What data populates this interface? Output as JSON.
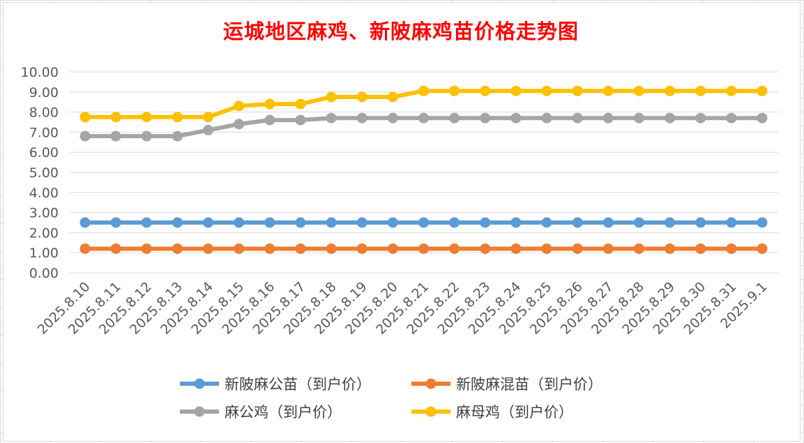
{
  "chart_data": {
    "type": "line",
    "title": "运城地区麻鸡、新陂麻鸡苗价格走势图",
    "xlabel": "",
    "ylabel": "",
    "ylim": [
      0,
      10
    ],
    "yticks": [
      "0.00",
      "1.00",
      "2.00",
      "3.00",
      "4.00",
      "5.00",
      "6.00",
      "7.00",
      "8.00",
      "9.00",
      "10.00"
    ],
    "grid": "horizontal",
    "legend_position": "bottom",
    "categories": [
      "2025.8.10",
      "2025.8.11",
      "2025.8.12",
      "2025.8.13",
      "2025.8.14",
      "2025.8.15",
      "2025.8.16",
      "2025.8.17",
      "2025.8.18",
      "2025.8.19",
      "2025.8.20",
      "2025.8.21",
      "2025.8.22",
      "2025.8.23",
      "2025.8.24",
      "2025.8.25",
      "2025.8.26",
      "2025.8.27",
      "2025.8.28",
      "2025.8.29",
      "2025.8.30",
      "2025.8.31",
      "2025.9.1"
    ],
    "series": [
      {
        "name": "新陂麻公苗（到户价）",
        "color": "#5b9bd5",
        "values": [
          2.5,
          2.5,
          2.5,
          2.5,
          2.5,
          2.5,
          2.5,
          2.5,
          2.5,
          2.5,
          2.5,
          2.5,
          2.5,
          2.5,
          2.5,
          2.5,
          2.5,
          2.5,
          2.5,
          2.5,
          2.5,
          2.5,
          2.5
        ]
      },
      {
        "name": "新陂麻混苗（到户价）",
        "color": "#ed7d31",
        "values": [
          1.2,
          1.2,
          1.2,
          1.2,
          1.2,
          1.2,
          1.2,
          1.2,
          1.2,
          1.2,
          1.2,
          1.2,
          1.2,
          1.2,
          1.2,
          1.2,
          1.2,
          1.2,
          1.2,
          1.2,
          1.2,
          1.2,
          1.2
        ]
      },
      {
        "name": "麻公鸡（到户价）",
        "color": "#a5a5a5",
        "values": [
          6.8,
          6.8,
          6.8,
          6.8,
          7.1,
          7.4,
          7.6,
          7.6,
          7.7,
          7.7,
          7.7,
          7.7,
          7.7,
          7.7,
          7.7,
          7.7,
          7.7,
          7.7,
          7.7,
          7.7,
          7.7,
          7.7,
          7.7
        ]
      },
      {
        "name": "麻母鸡（到户价）",
        "color": "#ffc000",
        "values": [
          7.75,
          7.75,
          7.75,
          7.75,
          7.75,
          8.3,
          8.4,
          8.4,
          8.75,
          8.75,
          8.75,
          9.05,
          9.05,
          9.05,
          9.05,
          9.05,
          9.05,
          9.05,
          9.05,
          9.05,
          9.05,
          9.05,
          9.05
        ]
      }
    ]
  }
}
